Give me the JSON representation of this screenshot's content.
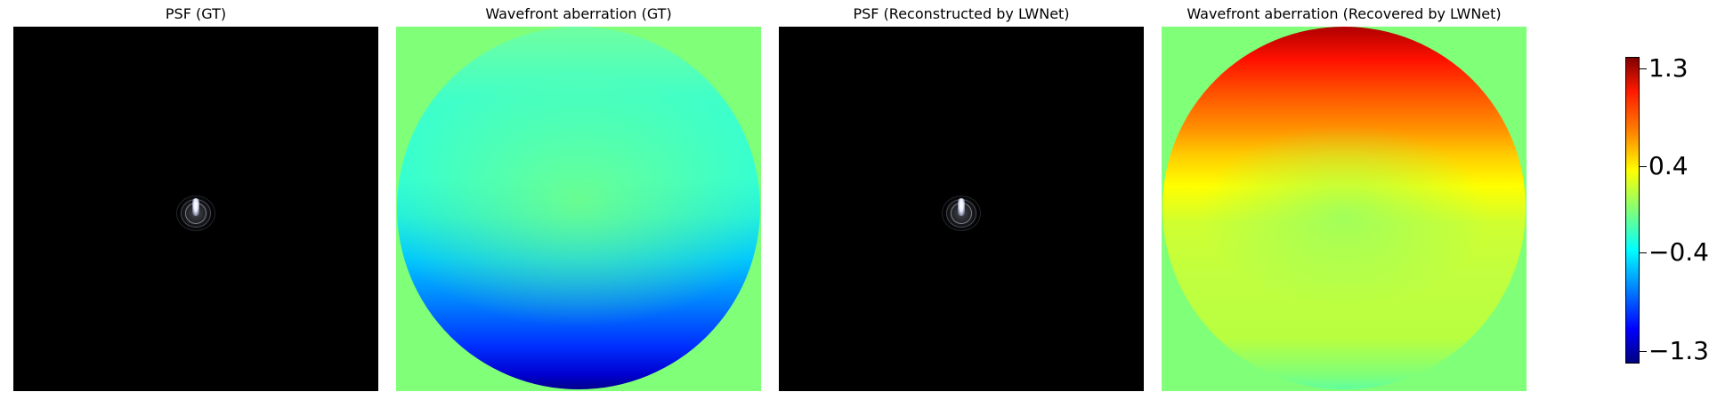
{
  "panels": [
    {
      "title": "PSF (GT)",
      "kind": "psf"
    },
    {
      "title": "Wavefront aberration (GT)",
      "kind": "wavefront"
    },
    {
      "title": "PSF (Reconstructed by LWNet)",
      "kind": "psf"
    },
    {
      "title": "Wavefront aberration (Recovered by LWNet)",
      "kind": "wavefront"
    }
  ],
  "colorbar": {
    "colormap": "jet",
    "ticks": [
      "1.3",
      "0.4",
      "−0.4",
      "−1.3"
    ]
  }
}
